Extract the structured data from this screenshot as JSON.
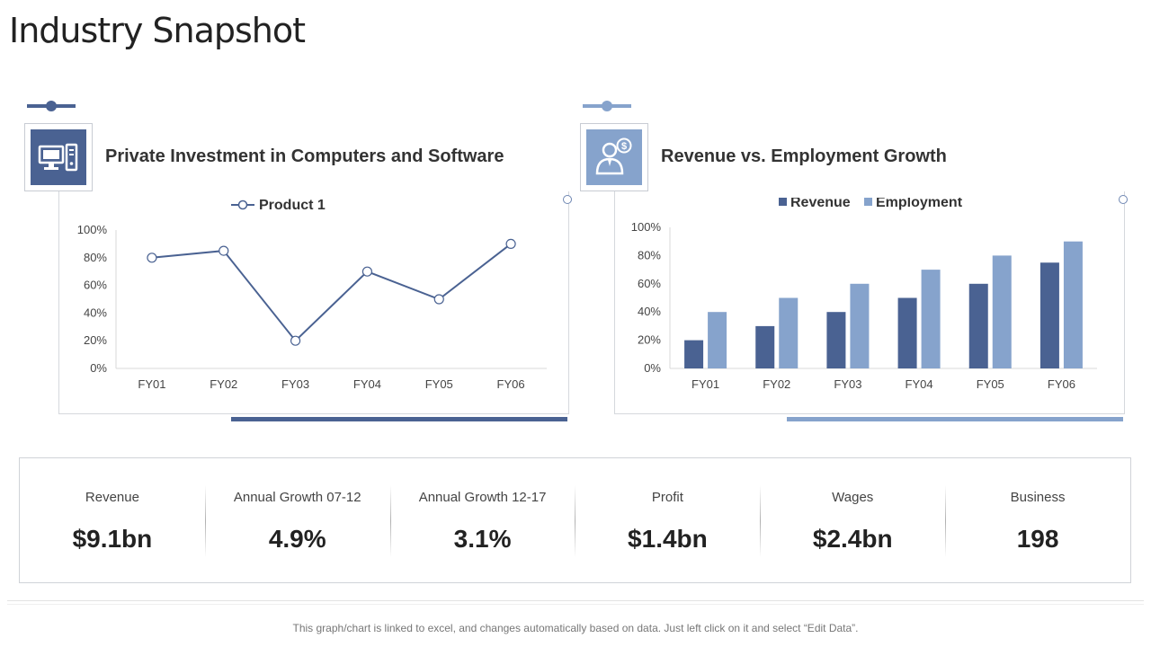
{
  "page": {
    "title": "Industry Snapshot",
    "footer_note": "This graph/chart is linked to excel, and changes automatically based on data. Just left click on it and select “Edit Data”."
  },
  "colors": {
    "dark_blue": "#4a6292",
    "light_blue": "#86a3cc",
    "grid": "#d9d9d9"
  },
  "panels": [
    {
      "title": "Private Investment in Computers and Software",
      "icon": "computer-icon"
    },
    {
      "title": "Revenue vs. Employment Growth",
      "icon": "businessman-dollar-icon"
    }
  ],
  "chart_data": [
    {
      "type": "line",
      "title": "",
      "categories": [
        "FY01",
        "FY02",
        "FY03",
        "FY04",
        "FY05",
        "FY06"
      ],
      "series": [
        {
          "name": "Product 1",
          "values": [
            80,
            85,
            20,
            70,
            50,
            90
          ]
        }
      ],
      "ylim": [
        0,
        100
      ],
      "yticks": [
        "0%",
        "20%",
        "40%",
        "60%",
        "80%",
        "100%"
      ],
      "legend": "top",
      "grid": false
    },
    {
      "type": "bar",
      "title": "",
      "categories": [
        "FY01",
        "FY02",
        "FY03",
        "FY04",
        "FY05",
        "FY06"
      ],
      "series": [
        {
          "name": "Revenue",
          "values": [
            20,
            30,
            40,
            50,
            60,
            75
          ]
        },
        {
          "name": "Employment",
          "values": [
            40,
            50,
            60,
            70,
            80,
            90
          ]
        }
      ],
      "ylim": [
        0,
        100
      ],
      "yticks": [
        "0%",
        "20%",
        "40%",
        "60%",
        "80%",
        "100%"
      ],
      "legend": "top",
      "grid": false
    }
  ],
  "stats": [
    {
      "label": "Revenue",
      "value": "$9.1bn"
    },
    {
      "label": "Annual Growth 07-12",
      "value": "4.9%"
    },
    {
      "label": "Annual Growth 12-17",
      "value": "3.1%"
    },
    {
      "label": "Profit",
      "value": "$1.4bn"
    },
    {
      "label": "Wages",
      "value": "$2.4bn"
    },
    {
      "label": "Business",
      "value": "198"
    }
  ]
}
